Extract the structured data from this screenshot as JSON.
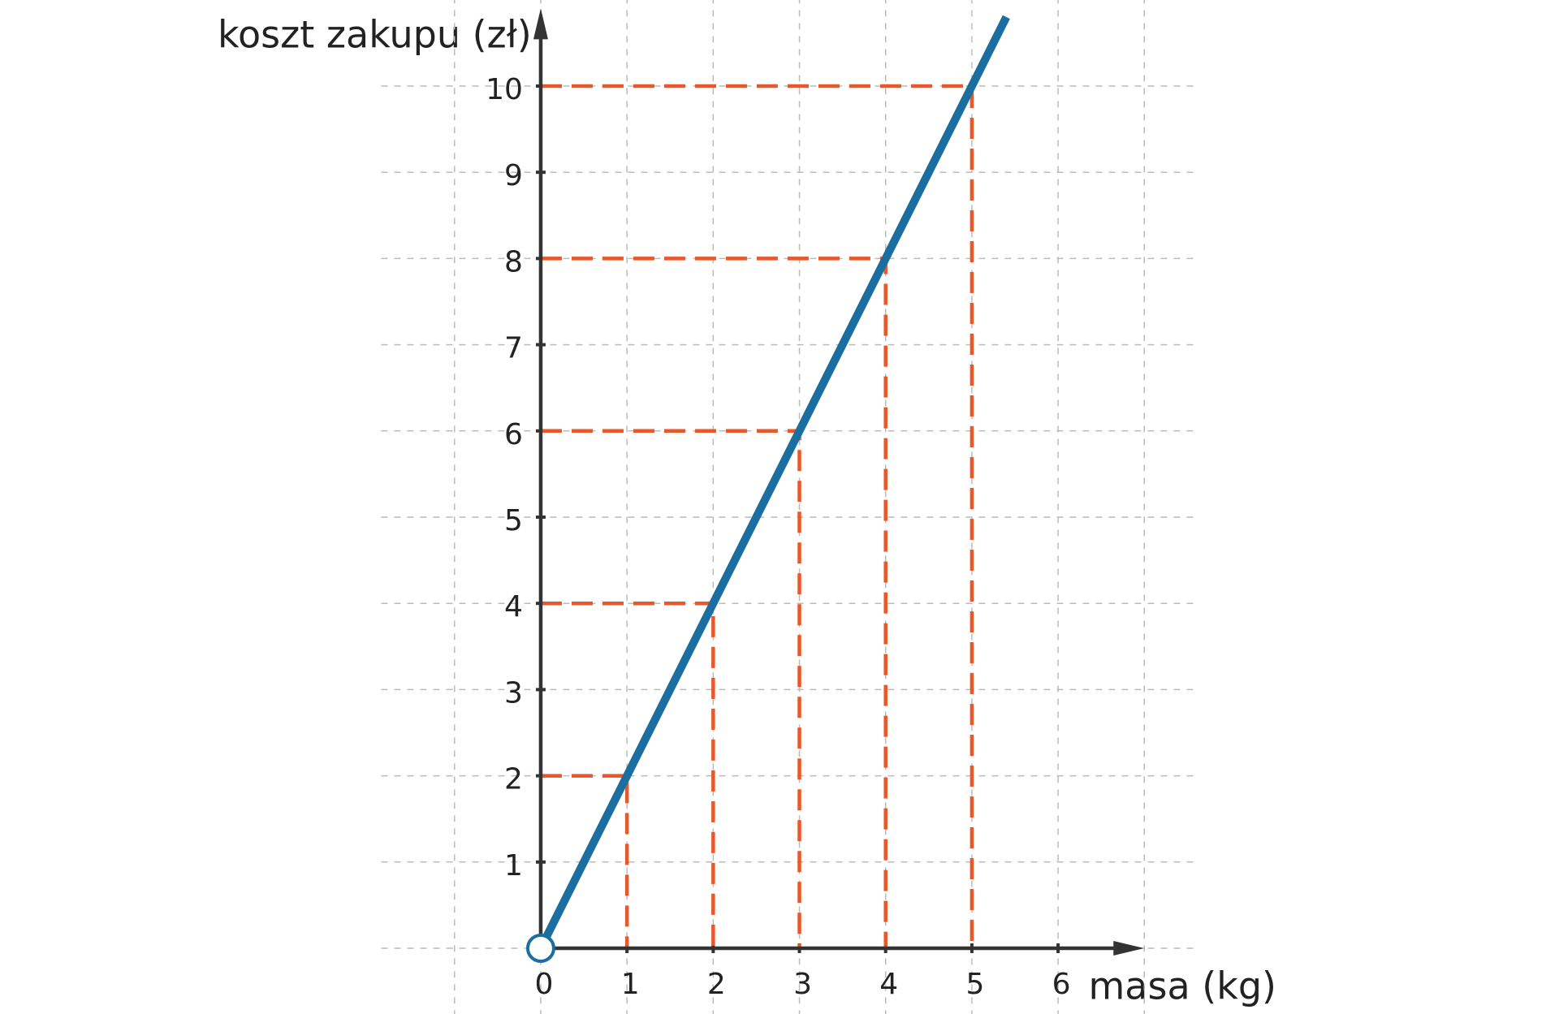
{
  "chart_data": {
    "type": "line",
    "y_label": "koszt zakupu (zł)",
    "x_label": "masa (kg)",
    "x": [
      0,
      5.4
    ],
    "values": [
      0,
      10.8
    ],
    "color": "#1b6fa0",
    "guides": {
      "x": [
        1,
        2,
        3,
        4,
        5
      ],
      "values": [
        2,
        4,
        6,
        8,
        10
      ],
      "color": "#e8582a"
    },
    "xlim": [
      -1.85,
      7.6
    ],
    "ylim": [
      0,
      10.9
    ],
    "xticks": [
      {
        "value": -1,
        "label": null
      },
      0,
      1,
      2,
      3,
      4,
      5,
      6,
      {
        "value": 7,
        "label": null
      }
    ],
    "yticks": [
      {
        "value": 0,
        "label": null
      },
      1,
      2,
      3,
      4,
      5,
      6,
      7,
      8,
      9,
      10
    ],
    "grid": true
  }
}
